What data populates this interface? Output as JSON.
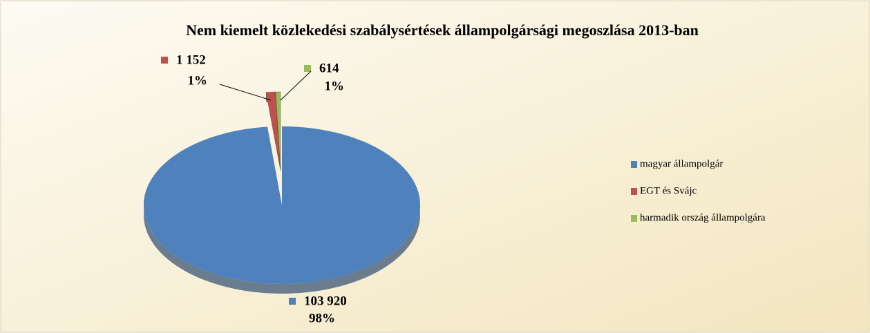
{
  "chart_data": {
    "type": "pie",
    "title": "Nem kiemelt közlekedési szabálysértések állampolgársági megoszlása 2013-ban",
    "categories": [
      "magyar állampolgár",
      "EGT és Svájc",
      "harmadik ország állampolgára"
    ],
    "values": [
      103920,
      1152,
      614
    ],
    "value_labels": [
      "103 920",
      "1 152",
      "614"
    ],
    "percent_labels": [
      "98%",
      "1%",
      "1%"
    ],
    "colors": [
      "#4f81bd",
      "#c0504d",
      "#9bbb59"
    ],
    "legend": "right"
  }
}
